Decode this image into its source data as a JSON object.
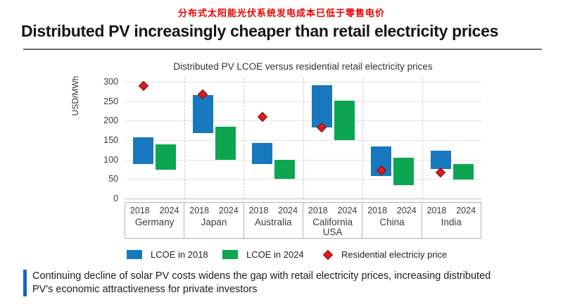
{
  "header": {
    "zh_title": "分布式太阳能光伏系统发电成本已低于零售电价",
    "en_title": "Distributed PV increasingly cheaper than retail electricity prices"
  },
  "chart_data": {
    "type": "bar",
    "subtype": "floating-range-columns-with-point-markers",
    "title": "Distributed PV LCOE versus residential retail electricity prices",
    "ylabel": "USD/MWh",
    "ylim": [
      0,
      300
    ],
    "yticks": [
      300,
      250,
      200,
      150,
      100,
      50,
      0
    ],
    "grid": "horizontal",
    "legend_position": "bottom",
    "categories": [
      "Germany",
      "Japan",
      "Australia",
      "California USA",
      "China",
      "India"
    ],
    "years": [
      "2018",
      "2024"
    ],
    "series": [
      {
        "name": "LCOE in 2018",
        "type": "range-bar",
        "color": "#1878BE",
        "ranges": [
          [
            88,
            158
          ],
          [
            168,
            265
          ],
          [
            88,
            142
          ],
          [
            182,
            291
          ],
          [
            57,
            133
          ],
          [
            76,
            122
          ]
        ]
      },
      {
        "name": "LCOE in 2024",
        "type": "range-bar",
        "color": "#0CA651",
        "ranges": [
          [
            74,
            140
          ],
          [
            100,
            185
          ],
          [
            50,
            100
          ],
          [
            150,
            251
          ],
          [
            34,
            104
          ],
          [
            49,
            88
          ]
        ]
      },
      {
        "name": "Residential electriciy price",
        "type": "point",
        "marker": "diamond",
        "color": "#E01820",
        "values": [
          290,
          267,
          209,
          183,
          72,
          67
        ]
      }
    ]
  },
  "footer": {
    "line1": "Continuing decline of solar PV costs widens the gap with retail electricity prices, increasing distributed",
    "line2": "PV's economic attractiveness for private investors"
  },
  "colors": {
    "title_red": "#EE0000",
    "accent_blue": "#1565C5",
    "bar_blue": "#1878BE",
    "bar_green": "#0CA651",
    "marker_red": "#E01820"
  }
}
